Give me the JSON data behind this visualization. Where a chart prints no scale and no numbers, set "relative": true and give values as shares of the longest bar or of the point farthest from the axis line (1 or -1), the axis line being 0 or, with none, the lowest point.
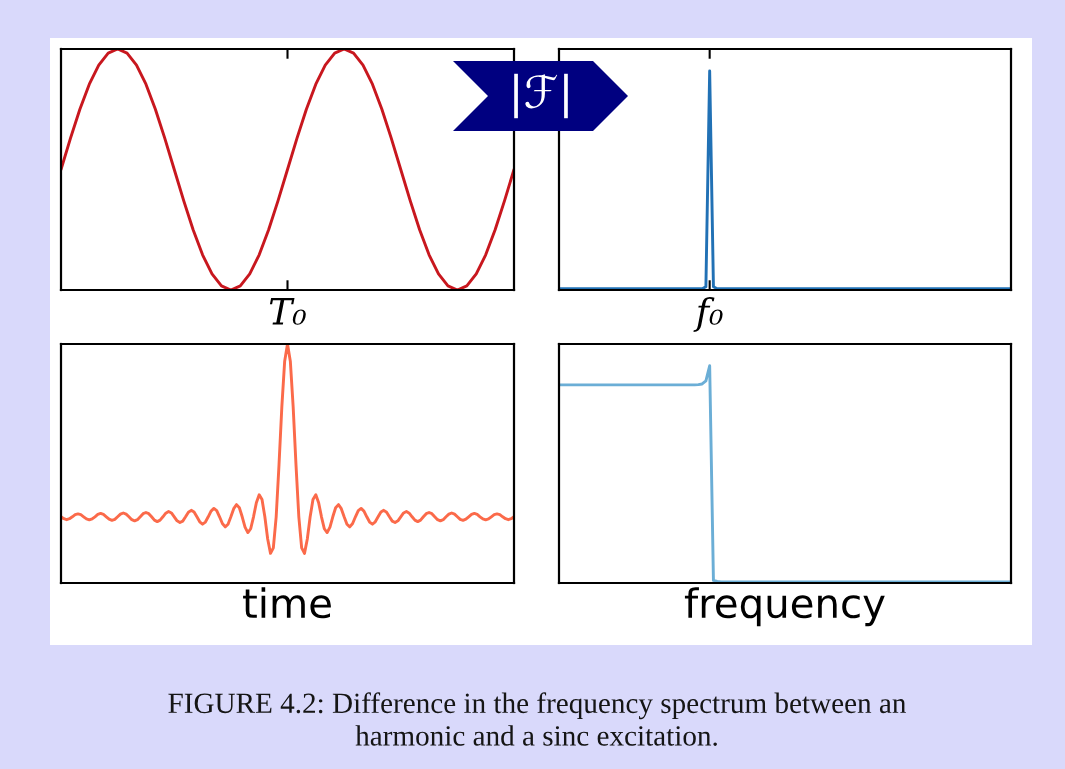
{
  "chart_data": [
    {
      "type": "line",
      "relative": true,
      "color": "#c8171e",
      "annotations": [
        "T₀"
      ],
      "categories": [
        null,
        null,
        null,
        null,
        null,
        null,
        null,
        null,
        null,
        null,
        null,
        null,
        null,
        null,
        null,
        null,
        null,
        null,
        null,
        null,
        null,
        null,
        null,
        null,
        null,
        null,
        null,
        null,
        null,
        null,
        null,
        null,
        null,
        null,
        null,
        null,
        null,
        null,
        null,
        null,
        null,
        null,
        null,
        null,
        null,
        null,
        null,
        null,
        null
      ],
      "values": [
        0.5,
        0.629,
        0.75,
        0.854,
        0.933,
        0.983,
        1,
        0.983,
        0.933,
        0.854,
        0.75,
        0.629,
        0.5,
        0.371,
        0.25,
        0.146,
        0.067,
        0.017,
        0,
        0.017,
        0.067,
        0.146,
        0.25,
        0.371,
        0.5,
        0.629,
        0.75,
        0.854,
        0.933,
        0.983,
        1,
        0.983,
        0.933,
        0.854,
        0.75,
        0.629,
        0.5,
        0.371,
        0.25,
        0.146,
        0.067,
        0.017,
        0,
        0.017,
        0.067,
        0.146,
        0.25,
        0.371,
        0.5
      ]
    },
    {
      "type": "line",
      "relative": true,
      "color": "#2171b5",
      "annotations": [
        "|ℱ|",
        "f₀"
      ],
      "categories": [
        null,
        null,
        null,
        null,
        null,
        null,
        null,
        null,
        null,
        null,
        null,
        null,
        null,
        null,
        null,
        null,
        null,
        null,
        null,
        null,
        null,
        null,
        null,
        null,
        null,
        null,
        null,
        null,
        null,
        null,
        null,
        null,
        null,
        null,
        null,
        null,
        null,
        null,
        null,
        null,
        null,
        null,
        null,
        null,
        null,
        null,
        null,
        null,
        null,
        null,
        null,
        null,
        null,
        null,
        null,
        null,
        null,
        null,
        null,
        null,
        null,
        null,
        null,
        null,
        null,
        null,
        null,
        null,
        null,
        null,
        null,
        null,
        null,
        null,
        null,
        null,
        null,
        null,
        null,
        null,
        null,
        null,
        null,
        null,
        null,
        null,
        null,
        null,
        null,
        null,
        null,
        null,
        null,
        null,
        null,
        null,
        null,
        null,
        null,
        null,
        null,
        null,
        null,
        null,
        null,
        null,
        null,
        null,
        null,
        null,
        null,
        null,
        null,
        null,
        null,
        null,
        null,
        null,
        null,
        null,
        null
      ],
      "values": [
        0.006,
        0.006,
        0.006,
        0.006,
        0.006,
        0.006,
        0.006,
        0.006,
        0.006,
        0.006,
        0.006,
        0.006,
        0.006,
        0.006,
        0.006,
        0.006,
        0.006,
        0.006,
        0.006,
        0.006,
        0.006,
        0.006,
        0.006,
        0.006,
        0.006,
        0.006,
        0.006,
        0.006,
        0.006,
        0.006,
        0.006,
        0.006,
        0.006,
        0.006,
        0.006,
        0.006,
        0.006,
        0.006,
        0.006,
        0.015,
        1,
        0.015,
        0.006,
        0.006,
        0.006,
        0.006,
        0.006,
        0.006,
        0.006,
        0.006,
        0.006,
        0.006,
        0.006,
        0.006,
        0.006,
        0.006,
        0.006,
        0.006,
        0.006,
        0.006,
        0.006,
        0.006,
        0.006,
        0.006,
        0.006,
        0.006,
        0.006,
        0.006,
        0.006,
        0.006,
        0.006,
        0.006,
        0.006,
        0.006,
        0.006,
        0.006,
        0.006,
        0.006,
        0.006,
        0.006,
        0.006,
        0.006,
        0.006,
        0.006,
        0.006,
        0.006,
        0.006,
        0.006,
        0.006,
        0.006,
        0.006,
        0.006,
        0.006,
        0.006,
        0.006,
        0.006,
        0.006,
        0.006,
        0.006,
        0.006,
        0.006,
        0.006,
        0.006,
        0.006,
        0.006,
        0.006,
        0.006,
        0.006,
        0.006,
        0.006,
        0.006,
        0.006,
        0.006,
        0.006,
        0.006,
        0.006,
        0.006,
        0.006,
        0.006,
        0.006,
        0.006
      ]
    },
    {
      "type": "line",
      "relative": true,
      "color": "#fb6a4a",
      "xlabel": "time",
      "categories": [
        null,
        null,
        null,
        null,
        null,
        null,
        null,
        null,
        null,
        null,
        null,
        null,
        null,
        null,
        null,
        null,
        null,
        null,
        null,
        null,
        null,
        null,
        null,
        null,
        null,
        null,
        null,
        null,
        null,
        null,
        null,
        null,
        null,
        null,
        null,
        null,
        null,
        null,
        null,
        null,
        null,
        null,
        null,
        null,
        null,
        null,
        null,
        null,
        null,
        null,
        null,
        null,
        null,
        null,
        null,
        null,
        null,
        null,
        null,
        null,
        null,
        null,
        null,
        null,
        null,
        null,
        null,
        null,
        null,
        null,
        null,
        null,
        null,
        null,
        null,
        null,
        null,
        null,
        null,
        null,
        null,
        null,
        null,
        null,
        null,
        null,
        null,
        null,
        null,
        null,
        null,
        null,
        null,
        null,
        null,
        null,
        null,
        null,
        null,
        null,
        null,
        null,
        null,
        null,
        null,
        null,
        null,
        null,
        null,
        null,
        null,
        null,
        null,
        null,
        null,
        null,
        null,
        null,
        null,
        null,
        null,
        null,
        null,
        null,
        null,
        null,
        null,
        null,
        null,
        null,
        null,
        null,
        null,
        null,
        null,
        null,
        null,
        null,
        null,
        null,
        null,
        null,
        null,
        null,
        null,
        null,
        null,
        null,
        null,
        null,
        null,
        null,
        null,
        null,
        null,
        null,
        null,
        null,
        null,
        null,
        null
      ],
      "values": [
        0.277,
        0.269,
        0.265,
        0.269,
        0.277,
        0.286,
        0.289,
        0.286,
        0.277,
        0.268,
        0.264,
        0.268,
        0.277,
        0.287,
        0.291,
        0.287,
        0.277,
        0.267,
        0.262,
        0.266,
        0.277,
        0.288,
        0.293,
        0.288,
        0.277,
        0.265,
        0.26,
        0.265,
        0.277,
        0.29,
        0.295,
        0.29,
        0.277,
        0.263,
        0.257,
        0.263,
        0.277,
        0.292,
        0.299,
        0.293,
        0.277,
        0.26,
        0.253,
        0.259,
        0.277,
        0.296,
        0.304,
        0.297,
        0.277,
        0.256,
        0.246,
        0.255,
        0.277,
        0.301,
        0.312,
        0.303,
        0.277,
        0.249,
        0.235,
        0.246,
        0.277,
        0.311,
        0.328,
        0.315,
        0.277,
        0.234,
        0.211,
        0.227,
        0.277,
        0.336,
        0.369,
        0.349,
        0.277,
        0.184,
        0.124,
        0.147,
        0.277,
        0.494,
        0.737,
        0.928,
        1,
        0.928,
        0.737,
        0.494,
        0.277,
        0.147,
        0.124,
        0.184,
        0.277,
        0.349,
        0.369,
        0.336,
        0.277,
        0.227,
        0.211,
        0.234,
        0.277,
        0.315,
        0.328,
        0.311,
        0.277,
        0.246,
        0.235,
        0.249,
        0.277,
        0.303,
        0.312,
        0.301,
        0.277,
        0.255,
        0.246,
        0.256,
        0.277,
        0.297,
        0.304,
        0.296,
        0.277,
        0.259,
        0.253,
        0.26,
        0.277,
        0.293,
        0.299,
        0.292,
        0.277,
        0.263,
        0.257,
        0.263,
        0.277,
        0.29,
        0.295,
        0.29,
        0.277,
        0.265,
        0.26,
        0.265,
        0.277,
        0.288,
        0.293,
        0.288,
        0.277,
        0.266,
        0.262,
        0.267,
        0.277,
        0.287,
        0.291,
        0.287,
        0.277,
        0.268,
        0.264,
        0.268,
        0.277,
        0.286,
        0.289,
        0.286,
        0.277,
        0.269,
        0.265,
        0.269,
        0.277
      ]
    },
    {
      "type": "line",
      "relative": true,
      "color": "#6baed6",
      "xlabel": "frequency",
      "annotations": [
        "FIGURE 4.2: Difference in the frequency spectrum between an harmonic and a sinc excitation."
      ],
      "categories": [
        null,
        null,
        null,
        null,
        null,
        null,
        null,
        null,
        null,
        null,
        null,
        null,
        null,
        null,
        null,
        null,
        null,
        null,
        null,
        null,
        null,
        null,
        null,
        null,
        null,
        null,
        null,
        null,
        null,
        null,
        null,
        null,
        null,
        null,
        null,
        null,
        null,
        null,
        null,
        null,
        null,
        null,
        null,
        null,
        null,
        null,
        null,
        null,
        null,
        null,
        null,
        null,
        null,
        null,
        null,
        null,
        null,
        null,
        null,
        null,
        null,
        null,
        null,
        null,
        null,
        null,
        null,
        null,
        null,
        null,
        null,
        null,
        null,
        null,
        null,
        null,
        null,
        null,
        null,
        null,
        null,
        null,
        null,
        null,
        null,
        null,
        null,
        null,
        null,
        null,
        null,
        null,
        null,
        null,
        null,
        null,
        null,
        null,
        null,
        null,
        null,
        null,
        null,
        null,
        null,
        null,
        null,
        null,
        null,
        null,
        null,
        null,
        null,
        null,
        null,
        null,
        null,
        null,
        null,
        null,
        null
      ],
      "values": [
        0.912,
        0.912,
        0.912,
        0.912,
        0.912,
        0.912,
        0.912,
        0.912,
        0.912,
        0.912,
        0.912,
        0.912,
        0.912,
        0.912,
        0.912,
        0.912,
        0.912,
        0.912,
        0.912,
        0.912,
        0.912,
        0.912,
        0.912,
        0.912,
        0.912,
        0.912,
        0.912,
        0.912,
        0.912,
        0.912,
        0.912,
        0.912,
        0.912,
        0.912,
        0.912,
        0.912,
        0.912,
        0.913,
        0.916,
        0.93,
        1,
        0.012,
        0.007,
        0.005,
        0.005,
        0.005,
        0.005,
        0.005,
        0.005,
        0.005,
        0.005,
        0.005,
        0.005,
        0.005,
        0.005,
        0.005,
        0.005,
        0.005,
        0.005,
        0.005,
        0.005,
        0.005,
        0.005,
        0.005,
        0.005,
        0.005,
        0.005,
        0.005,
        0.005,
        0.005,
        0.005,
        0.005,
        0.005,
        0.005,
        0.005,
        0.005,
        0.005,
        0.005,
        0.005,
        0.005,
        0.005,
        0.005,
        0.005,
        0.005,
        0.005,
        0.005,
        0.005,
        0.005,
        0.005,
        0.005,
        0.005,
        0.005,
        0.005,
        0.005,
        0.005,
        0.005,
        0.005,
        0.005,
        0.005,
        0.005,
        0.005,
        0.005,
        0.005,
        0.005,
        0.005,
        0.005,
        0.005,
        0.005,
        0.005,
        0.005,
        0.005,
        0.005,
        0.005,
        0.005,
        0.005,
        0.005,
        0.005,
        0.005,
        0.005,
        0.005,
        0.005
      ]
    }
  ]
}
